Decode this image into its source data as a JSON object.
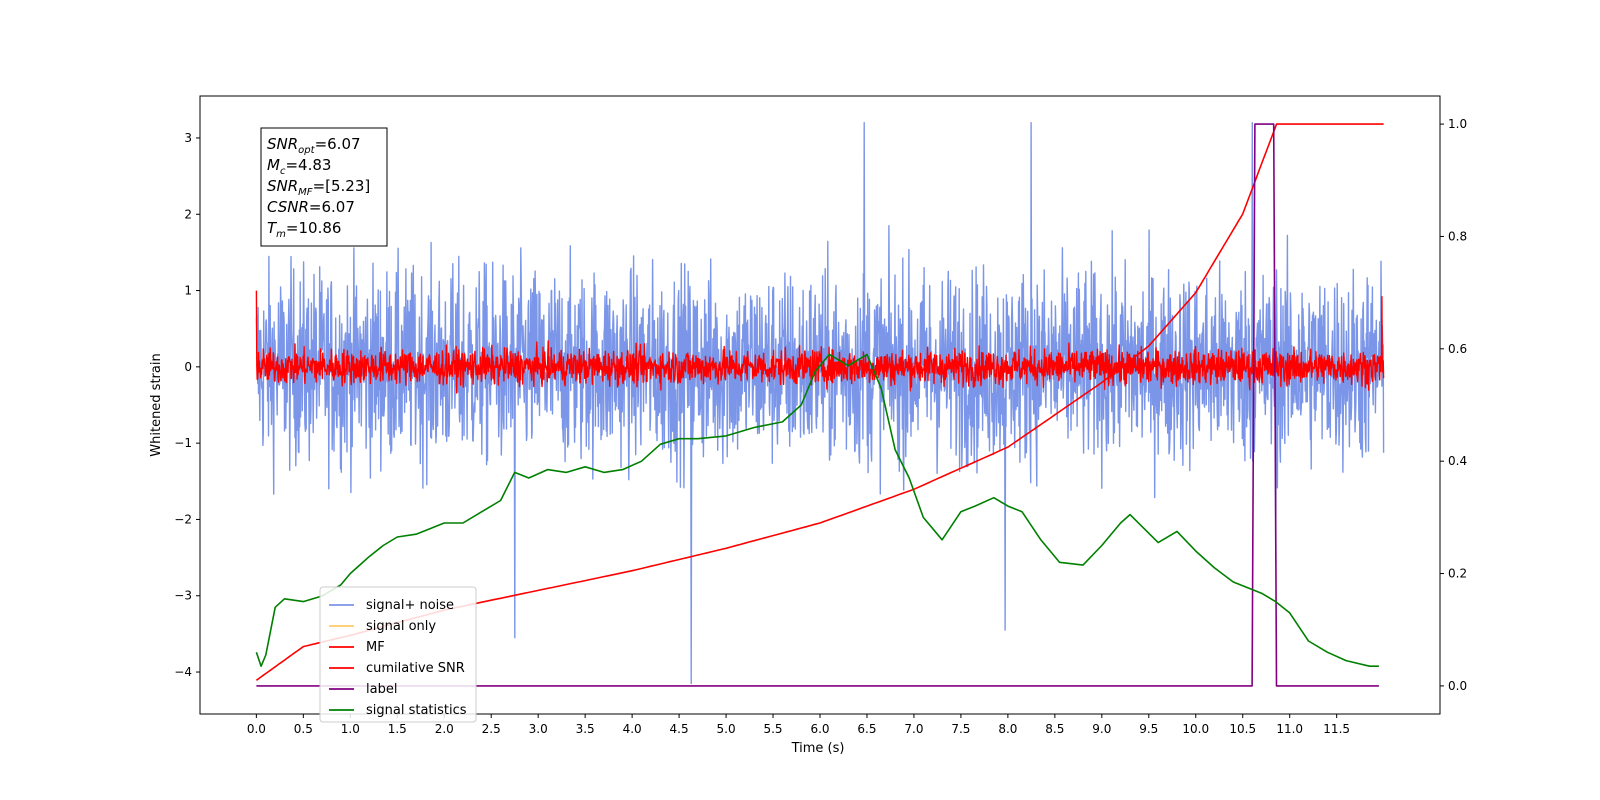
{
  "chart_data": {
    "type": "line",
    "xlabel": "Time (s)",
    "ylabel": "Whitened strain",
    "xlim": [
      -0.6,
      12.6
    ],
    "ylim": [
      -4.55,
      3.55
    ],
    "ylim_right": [
      -0.05,
      1.05
    ],
    "x_ticks": [
      "0.0",
      "0.5",
      "1.0",
      "1.5",
      "2.0",
      "2.5",
      "3.0",
      "3.5",
      "4.0",
      "4.5",
      "5.0",
      "5.5",
      "6.0",
      "6.5",
      "7.0",
      "7.5",
      "8.0",
      "8.5",
      "9.0",
      "9.5",
      "10.0",
      "10.5",
      "11.0",
      "11.5"
    ],
    "y_ticks": [
      "3",
      "2",
      "1",
      "0",
      "−1",
      "−2",
      "−3",
      "−4"
    ],
    "y_ticks_right": [
      "1.0",
      "0.8",
      "0.6",
      "0.4",
      "0.2",
      "0.0"
    ],
    "annotation": {
      "lines": [
        {
          "base": "SNR",
          "sub": "opt",
          "value": "=6.07"
        },
        {
          "base": "M",
          "sub": "c",
          "value": "=4.83"
        },
        {
          "base": "SNR",
          "sub": "MF",
          "value": "=[5.23]"
        },
        {
          "base": "CSNR",
          "sub": "",
          "value": "=6.07"
        },
        {
          "base": "T",
          "sub": "m",
          "value": "=10.86"
        }
      ]
    },
    "legend": {
      "placement": "lower-left",
      "entries": [
        {
          "label": "signal+ noise",
          "color": "#7b96e8"
        },
        {
          "label": "signal only",
          "color": "#ffcc66"
        },
        {
          "label": "MF",
          "color": "#ff0000"
        },
        {
          "label": "cumilative SNR",
          "color": "#ff0000"
        },
        {
          "label": "label",
          "color": "#800080"
        },
        {
          "label": "signal statistics",
          "color": "#008000"
        }
      ]
    },
    "series": [
      {
        "name": "signal+ noise",
        "axis": "left",
        "color": "#7b96e8",
        "description_of_shape": "dense oscillating noise band",
        "x_range": [
          0.0,
          12.0
        ],
        "center": 0.0,
        "amplitude": 1.5,
        "spikes": [
          [
            2.75,
            -3.55
          ],
          [
            4.63,
            -4.15
          ],
          [
            7.97,
            -3.45
          ],
          [
            10.85,
            -2.55
          ],
          [
            8.25,
            3.2
          ],
          [
            6.47,
            3.2
          ],
          [
            10.6,
            3.2
          ]
        ]
      },
      {
        "name": "MF",
        "axis": "left",
        "color": "#ff0000",
        "description_of_shape": "narrow oscillating band around 0",
        "x_range": [
          0.0,
          12.0
        ],
        "center": 0.0,
        "amplitude": 0.27,
        "spikes": [
          [
            0.0,
            1.0
          ],
          [
            11.98,
            0.92
          ]
        ]
      },
      {
        "name": "cumilative SNR",
        "axis": "right",
        "color": "#ff0000",
        "x": [
          0.0,
          0.5,
          1.0,
          2.0,
          3.0,
          4.0,
          5.0,
          6.0,
          7.0,
          8.0,
          9.0,
          9.5,
          10.0,
          10.5,
          10.86,
          12.0
        ],
        "y": [
          0.01,
          0.07,
          0.09,
          0.135,
          0.17,
          0.205,
          0.245,
          0.29,
          0.35,
          0.425,
          0.54,
          0.605,
          0.7,
          0.84,
          1.0,
          1.0
        ]
      },
      {
        "name": "label",
        "axis": "right",
        "color": "#800080",
        "x": [
          0.0,
          10.6,
          10.63,
          10.83,
          10.86,
          11.95
        ],
        "y": [
          0.0,
          0.0,
          1.0,
          1.0,
          0.0,
          0.0
        ]
      },
      {
        "name": "signal statistics",
        "axis": "right",
        "color": "#008000",
        "x": [
          0.0,
          0.05,
          0.1,
          0.2,
          0.3,
          0.5,
          0.7,
          0.9,
          1.0,
          1.1,
          1.2,
          1.35,
          1.5,
          1.7,
          1.85,
          2.0,
          2.2,
          2.4,
          2.6,
          2.75,
          2.9,
          3.1,
          3.3,
          3.5,
          3.7,
          3.9,
          4.1,
          4.3,
          4.5,
          4.7,
          5.0,
          5.3,
          5.6,
          5.8,
          5.95,
          6.1,
          6.3,
          6.5,
          6.65,
          6.8,
          6.95,
          7.1,
          7.3,
          7.5,
          7.65,
          7.85,
          8.0,
          8.15,
          8.35,
          8.55,
          8.8,
          9.0,
          9.2,
          9.3,
          9.45,
          9.6,
          9.8,
          10.0,
          10.2,
          10.4,
          10.55,
          10.7,
          10.85,
          11.0,
          11.2,
          11.4,
          11.6,
          11.85,
          11.95
        ],
        "y": [
          0.06,
          0.035,
          0.055,
          0.14,
          0.155,
          0.15,
          0.16,
          0.18,
          0.2,
          0.215,
          0.23,
          0.25,
          0.265,
          0.27,
          0.28,
          0.29,
          0.29,
          0.31,
          0.33,
          0.38,
          0.37,
          0.385,
          0.38,
          0.39,
          0.38,
          0.385,
          0.4,
          0.43,
          0.44,
          0.44,
          0.445,
          0.46,
          0.47,
          0.5,
          0.56,
          0.59,
          0.57,
          0.59,
          0.53,
          0.42,
          0.37,
          0.3,
          0.26,
          0.31,
          0.32,
          0.335,
          0.32,
          0.31,
          0.26,
          0.22,
          0.215,
          0.25,
          0.29,
          0.305,
          0.28,
          0.255,
          0.275,
          0.24,
          0.21,
          0.185,
          0.175,
          0.165,
          0.15,
          0.13,
          0.08,
          0.06,
          0.045,
          0.035,
          0.035
        ]
      }
    ]
  }
}
